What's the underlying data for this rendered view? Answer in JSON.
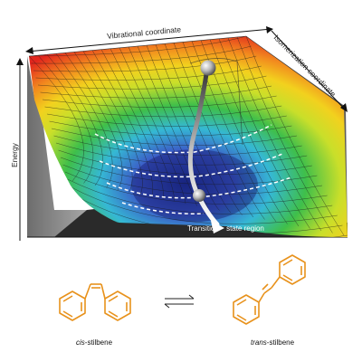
{
  "axes": {
    "vibrational": "Vibrational coordinate",
    "isomerization": "Isomerization coordinate",
    "energy": "Energy"
  },
  "surface": {
    "transition_label_1": "Transition",
    "transition_label_2": "state region"
  },
  "molecules": {
    "cis_prefix": "cis",
    "cis_suffix": "-stilbene",
    "trans_prefix": "trans",
    "trans_suffix": "-stilbene"
  },
  "colors": {
    "molecule_orange": "#e8921c",
    "wall_gray": "#8a8a8a",
    "floor_dark": "#2a2a2a",
    "surface_red": "#e2261d",
    "surface_blue": "#1c2a8e"
  }
}
